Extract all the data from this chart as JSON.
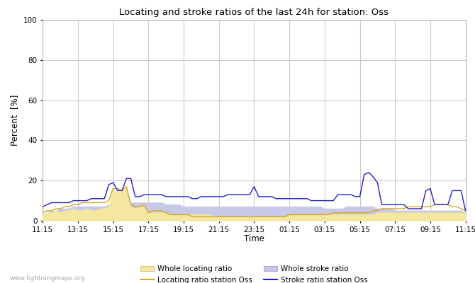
{
  "title": "Locating and stroke ratios of the last 24h for station: Oss",
  "ylabel": "Percent  [%]",
  "xlabel": "Time",
  "xlim": [
    0,
    96
  ],
  "ylim": [
    0,
    100
  ],
  "yticks": [
    0,
    20,
    40,
    60,
    80,
    100
  ],
  "xtick_labels": [
    "11:15",
    "13:15",
    "15:15",
    "17:15",
    "19:15",
    "21:15",
    "23:15",
    "01:15",
    "03:15",
    "05:15",
    "07:15",
    "09:15",
    "11:15"
  ],
  "xtick_positions": [
    0,
    8,
    16,
    24,
    32,
    40,
    48,
    56,
    64,
    72,
    80,
    88,
    96
  ],
  "watermark": "www.lightningmaps.org",
  "bg_color": "#ffffff",
  "plot_bg_color": "#ffffff",
  "grid_color": "#cccccc",
  "whole_locating_fill_color": "#f5e6a0",
  "whole_stroke_fill_color": "#c8c8e8",
  "locating_line_color": "#d4a820",
  "stroke_line_color": "#2020cc",
  "whole_locating_ratio": [
    3,
    4,
    4,
    5,
    4,
    5,
    5,
    6,
    5,
    5,
    6,
    5,
    5,
    6,
    6,
    7,
    15,
    14,
    15,
    16,
    7,
    6,
    7,
    7,
    4,
    4,
    4,
    4,
    4,
    3,
    3,
    3,
    3,
    3,
    3,
    3,
    3,
    3,
    3,
    2,
    2,
    2,
    2,
    2,
    2,
    2,
    2,
    2,
    2,
    2,
    2,
    2,
    2,
    2,
    2,
    2,
    3,
    3,
    3,
    3,
    3,
    3,
    3,
    3,
    3,
    3,
    3,
    3,
    3,
    3,
    3,
    3,
    3,
    3,
    3,
    3,
    4,
    4,
    4,
    4,
    4,
    4,
    4,
    4,
    4,
    4,
    4,
    4,
    4,
    4,
    4,
    4,
    4,
    4,
    4,
    4,
    4
  ],
  "whole_stroke_ratio": [
    3,
    4,
    5,
    5,
    6,
    6,
    6,
    7,
    7,
    7,
    7,
    7,
    7,
    7,
    7,
    8,
    8,
    8,
    8,
    8,
    9,
    9,
    9,
    9,
    9,
    9,
    9,
    9,
    8,
    8,
    8,
    8,
    7,
    7,
    7,
    7,
    7,
    7,
    7,
    7,
    7,
    7,
    7,
    7,
    7,
    7,
    7,
    7,
    7,
    7,
    7,
    7,
    7,
    7,
    7,
    7,
    7,
    7,
    7,
    7,
    7,
    7,
    7,
    7,
    6,
    6,
    6,
    6,
    6,
    7,
    7,
    7,
    7,
    7,
    7,
    7,
    6,
    6,
    6,
    6,
    5,
    5,
    5,
    5,
    5,
    5,
    5,
    5,
    5,
    5,
    5,
    5,
    5,
    5,
    5,
    5,
    4
  ],
  "locating_station": [
    4,
    5,
    5,
    6,
    6,
    7,
    7,
    8,
    8,
    9,
    9,
    9,
    9,
    9,
    9,
    10,
    16,
    16,
    15,
    17,
    8,
    7,
    7,
    8,
    4,
    5,
    5,
    5,
    4,
    3,
    3,
    3,
    3,
    3,
    2,
    2,
    2,
    2,
    2,
    2,
    2,
    2,
    2,
    2,
    2,
    2,
    2,
    2,
    2,
    2,
    2,
    2,
    2,
    2,
    2,
    2,
    3,
    3,
    3,
    3,
    3,
    3,
    3,
    3,
    3,
    3,
    4,
    4,
    4,
    4,
    4,
    4,
    4,
    4,
    4,
    5,
    5,
    6,
    6,
    6,
    6,
    6,
    6,
    7,
    7,
    7,
    7,
    7,
    7,
    8,
    8,
    8,
    8,
    7,
    7,
    6,
    5
  ],
  "stroke_station": [
    7,
    8,
    9,
    9,
    9,
    9,
    9,
    10,
    10,
    10,
    10,
    11,
    11,
    11,
    11,
    18,
    19,
    15,
    15,
    21,
    21,
    12,
    12,
    13,
    13,
    13,
    13,
    13,
    12,
    12,
    12,
    12,
    12,
    12,
    11,
    11,
    12,
    12,
    12,
    12,
    12,
    12,
    13,
    13,
    13,
    13,
    13,
    13,
    17,
    12,
    12,
    12,
    12,
    11,
    11,
    11,
    11,
    11,
    11,
    11,
    11,
    10,
    10,
    10,
    10,
    10,
    10,
    13,
    13,
    13,
    13,
    12,
    12,
    23,
    24,
    22,
    19,
    8,
    8,
    8,
    8,
    8,
    8,
    6,
    6,
    6,
    6,
    15,
    16,
    8,
    8,
    8,
    8,
    15,
    15,
    15,
    5
  ]
}
